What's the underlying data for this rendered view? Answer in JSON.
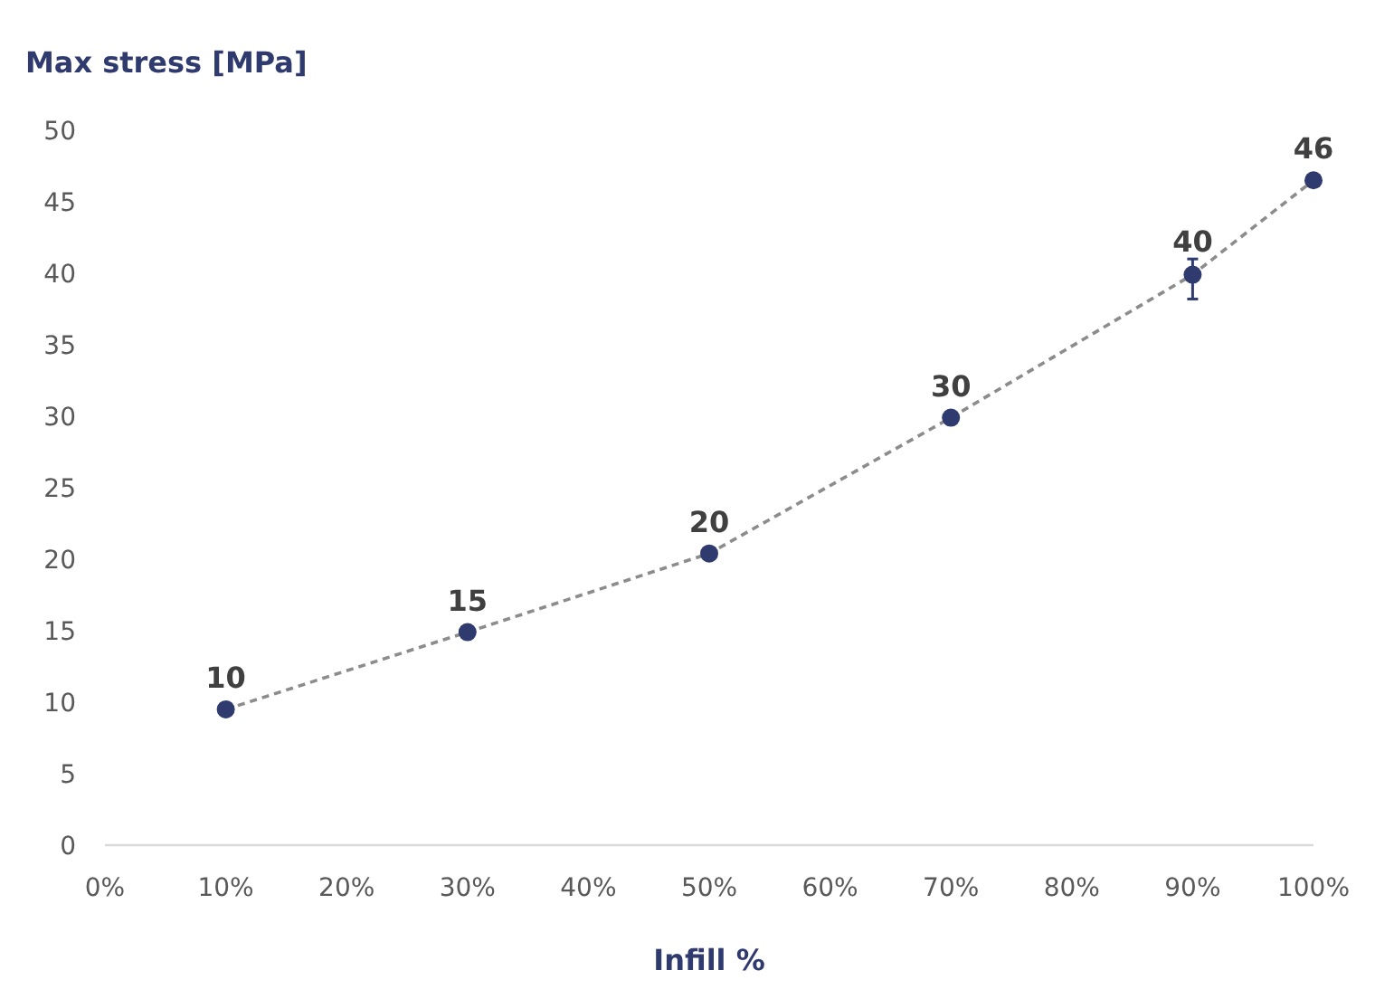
{
  "chart_data": {
    "type": "line",
    "ylabel": "Max stress [MPa]",
    "xlabel": "Infill %",
    "x": [
      10,
      30,
      50,
      70,
      90,
      100
    ],
    "series": [
      {
        "color": "#2f3a6e",
        "values": [
          9.5,
          14.9,
          20.4,
          29.9,
          39.9,
          46.5
        ],
        "errors": [
          null,
          null,
          null,
          null,
          [
            38.2,
            41.0
          ],
          null
        ],
        "value_labels": [
          "10",
          "15",
          "20",
          "30",
          "40",
          "46"
        ]
      }
    ],
    "xlim": [
      0,
      100
    ],
    "xticks": [
      {
        "value": 0,
        "label": "0%"
      },
      {
        "value": 10,
        "label": "10%"
      },
      {
        "value": 20,
        "label": "20%"
      },
      {
        "value": 30,
        "label": "30%"
      },
      {
        "value": 40,
        "label": "40%"
      },
      {
        "value": 50,
        "label": "50%"
      },
      {
        "value": 60,
        "label": "60%"
      },
      {
        "value": 70,
        "label": "70%"
      },
      {
        "value": 80,
        "label": "80%"
      },
      {
        "value": 90,
        "label": "90%"
      },
      {
        "value": 100,
        "label": "100%"
      }
    ],
    "ylim": [
      0,
      50
    ],
    "yticks": [
      0,
      5,
      10,
      15,
      20,
      25,
      30,
      35,
      40,
      45,
      50
    ],
    "grid": false,
    "marker": "circle",
    "line_style": "dashed"
  }
}
